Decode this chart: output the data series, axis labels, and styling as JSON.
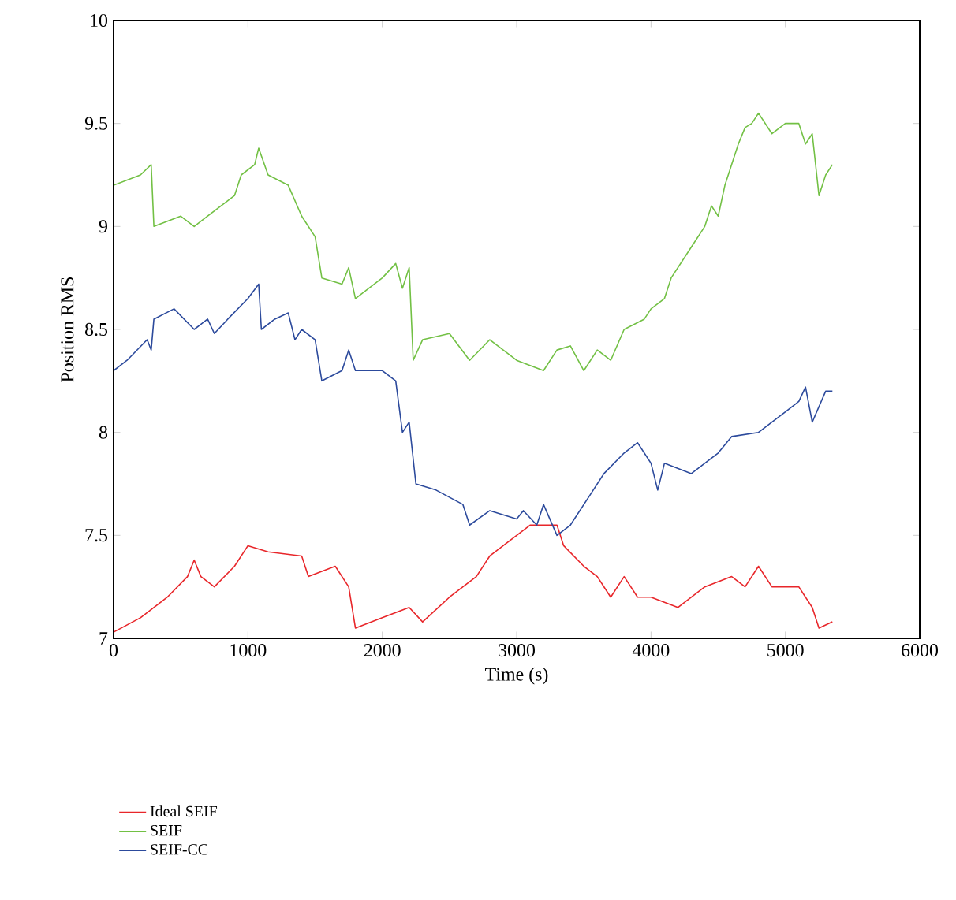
{
  "chart_data": {
    "type": "line",
    "xlabel": "Time (s)",
    "ylabel": "Position RMS",
    "xlim": [
      0,
      6000
    ],
    "ylim": [
      7,
      10
    ],
    "xticks": [
      0,
      1000,
      2000,
      3000,
      4000,
      5000,
      6000
    ],
    "yticks": [
      7,
      7.5,
      8,
      8.5,
      9,
      9.5,
      10
    ],
    "grid": false,
    "legend": "bottom",
    "marker": "none",
    "line_style": "solid",
    "series": [
      {
        "name": "Ideal SEIF",
        "color": "#e8262a",
        "x": [
          0,
          200,
          400,
          550,
          600,
          650,
          750,
          900,
          1000,
          1150,
          1400,
          1450,
          1650,
          1750,
          1800,
          2000,
          2200,
          2300,
          2500,
          2700,
          2800,
          3000,
          3100,
          3300,
          3350,
          3500,
          3600,
          3700,
          3800,
          3900,
          4000,
          4200,
          4400,
          4600,
          4700,
          4800,
          4900,
          5100,
          5200,
          5250,
          5350
        ],
        "values": [
          7.03,
          7.1,
          7.2,
          7.3,
          7.38,
          7.3,
          7.25,
          7.35,
          7.45,
          7.42,
          7.4,
          7.3,
          7.35,
          7.25,
          7.05,
          7.1,
          7.15,
          7.08,
          7.2,
          7.3,
          7.4,
          7.5,
          7.55,
          7.55,
          7.45,
          7.35,
          7.3,
          7.2,
          7.3,
          7.2,
          7.2,
          7.15,
          7.25,
          7.3,
          7.25,
          7.35,
          7.25,
          7.25,
          7.15,
          7.05,
          7.08
        ]
      },
      {
        "name": "SEIF",
        "color": "#72c044",
        "x": [
          0,
          200,
          280,
          300,
          500,
          600,
          800,
          900,
          950,
          1050,
          1080,
          1150,
          1300,
          1400,
          1500,
          1550,
          1700,
          1750,
          1800,
          2000,
          2100,
          2150,
          2200,
          2230,
          2300,
          2500,
          2650,
          2800,
          3000,
          3200,
          3300,
          3400,
          3500,
          3600,
          3700,
          3800,
          3950,
          4000,
          4100,
          4150,
          4300,
          4400,
          4450,
          4500,
          4550,
          4650,
          4700,
          4750,
          4800,
          4900,
          5000,
          5100,
          5150,
          5200,
          5250,
          5300,
          5350
        ],
        "values": [
          9.2,
          9.25,
          9.3,
          9.0,
          9.05,
          9.0,
          9.1,
          9.15,
          9.25,
          9.3,
          9.38,
          9.25,
          9.2,
          9.05,
          8.95,
          8.75,
          8.72,
          8.8,
          8.65,
          8.75,
          8.82,
          8.7,
          8.8,
          8.35,
          8.45,
          8.48,
          8.35,
          8.45,
          8.35,
          8.3,
          8.4,
          8.42,
          8.3,
          8.4,
          8.35,
          8.5,
          8.55,
          8.6,
          8.65,
          8.75,
          8.9,
          9.0,
          9.1,
          9.05,
          9.2,
          9.4,
          9.48,
          9.5,
          9.55,
          9.45,
          9.5,
          9.5,
          9.4,
          9.45,
          9.15,
          9.25,
          9.3
        ]
      },
      {
        "name": "SEIF-CC",
        "color": "#2c4a9c",
        "x": [
          0,
          100,
          250,
          280,
          300,
          450,
          600,
          700,
          750,
          850,
          1000,
          1080,
          1100,
          1200,
          1300,
          1350,
          1400,
          1500,
          1550,
          1700,
          1750,
          1800,
          2000,
          2100,
          2150,
          2200,
          2250,
          2400,
          2600,
          2650,
          2800,
          3000,
          3050,
          3150,
          3200,
          3300,
          3400,
          3550,
          3650,
          3800,
          3900,
          4000,
          4050,
          4100,
          4300,
          4500,
          4600,
          4800,
          5000,
          5100,
          5150,
          5200,
          5300,
          5350
        ],
        "values": [
          8.3,
          8.35,
          8.45,
          8.4,
          8.55,
          8.6,
          8.5,
          8.55,
          8.48,
          8.55,
          8.65,
          8.72,
          8.5,
          8.55,
          8.58,
          8.45,
          8.5,
          8.45,
          8.25,
          8.3,
          8.4,
          8.3,
          8.3,
          8.25,
          8.0,
          8.05,
          7.75,
          7.72,
          7.65,
          7.55,
          7.62,
          7.58,
          7.62,
          7.55,
          7.65,
          7.5,
          7.55,
          7.7,
          7.8,
          7.9,
          7.95,
          7.85,
          7.72,
          7.85,
          7.8,
          7.9,
          7.98,
          8.0,
          8.1,
          8.15,
          8.22,
          8.05,
          8.2,
          8.2
        ]
      }
    ]
  }
}
